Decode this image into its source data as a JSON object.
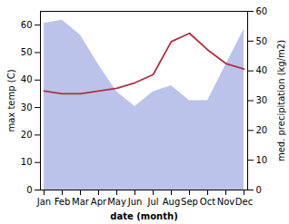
{
  "chart_data": {
    "type": "line",
    "xlabel": "date (month)",
    "ylabel": "max temp (C)",
    "y2label": "med. precipitation (kg/m2)",
    "categories": [
      "Jan",
      "Feb",
      "Mar",
      "Apr",
      "May",
      "Jun",
      "Jul",
      "Aug",
      "Sep",
      "Oct",
      "Nov",
      "Dec"
    ],
    "series": [
      {
        "type": "area",
        "color": "#b0b8e8",
        "axis": "y2",
        "values": [
          56,
          57,
          52,
          42,
          33,
          28,
          33,
          35,
          30,
          30,
          42,
          54
        ]
      },
      {
        "type": "line",
        "color": "#b03040",
        "values": [
          36,
          35,
          35,
          36,
          37,
          39,
          42,
          54,
          57,
          51,
          46,
          44
        ]
      }
    ],
    "ylim": [
      0,
      65
    ],
    "yticks": [
      0,
      10,
      20,
      30,
      40,
      50,
      60
    ],
    "y2lim": [
      0,
      60
    ],
    "y2ticks": [
      0,
      10,
      20,
      30,
      40,
      50,
      60
    ]
  }
}
